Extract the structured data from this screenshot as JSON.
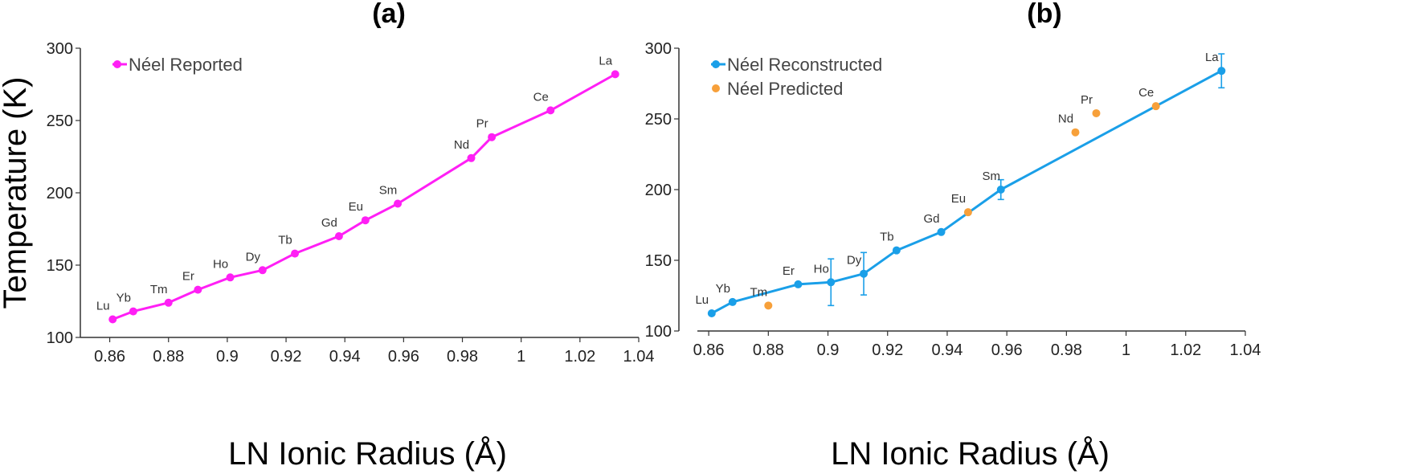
{
  "figure": {
    "panel_a_title": "(a)",
    "panel_b_title": "(b)",
    "shared_ylabel": "Temperature (K)"
  },
  "chart_data": [
    {
      "type": "line",
      "panel": "(a)",
      "title": "(a)",
      "xlabel": "LN Ionic Radius (Å)",
      "ylabel": "Temperature (K)",
      "xlim": [
        0.85,
        1.04
      ],
      "ylim": [
        100,
        300
      ],
      "xticks": [
        0.86,
        0.88,
        0.9,
        0.92,
        0.94,
        0.96,
        0.98,
        1,
        1.02,
        1.04
      ],
      "xtick_labels": [
        "0.86",
        "0.88",
        "0.9",
        "0.92",
        "0.94",
        "0.96",
        "0.98",
        "1",
        "1.02",
        "1.04"
      ],
      "yticks": [
        100,
        150,
        200,
        250,
        300
      ],
      "ytick_labels": [
        "100",
        "150",
        "200",
        "250",
        "300"
      ],
      "legend_position": "top-left",
      "series": [
        {
          "name": "Néel Reported",
          "color": "#ff1ff5",
          "style": "line+markers",
          "points": [
            {
              "label": "Lu",
              "x": 0.861,
              "y": 112.5
            },
            {
              "label": "Yb",
              "x": 0.868,
              "y": 118
            },
            {
              "label": "Tm",
              "x": 0.88,
              "y": 124
            },
            {
              "label": "Er",
              "x": 0.89,
              "y": 133
            },
            {
              "label": "Ho",
              "x": 0.901,
              "y": 141.5
            },
            {
              "label": "Dy",
              "x": 0.912,
              "y": 146.5
            },
            {
              "label": "Tb",
              "x": 0.923,
              "y": 158
            },
            {
              "label": "Gd",
              "x": 0.938,
              "y": 170
            },
            {
              "label": "Eu",
              "x": 0.947,
              "y": 181
            },
            {
              "label": "Sm",
              "x": 0.958,
              "y": 192.5
            },
            {
              "label": "Nd",
              "x": 0.983,
              "y": 224
            },
            {
              "label": "Pr",
              "x": 0.99,
              "y": 238.5
            },
            {
              "label": "Ce",
              "x": 1.01,
              "y": 257
            },
            {
              "label": "La",
              "x": 1.032,
              "y": 282
            }
          ]
        }
      ]
    },
    {
      "type": "line",
      "panel": "(b)",
      "title": "(b)",
      "xlabel": "LN Ionic Radius (Å)",
      "ylabel": "Temperature (K)",
      "xlim": [
        0.85,
        1.04
      ],
      "ylim": [
        100,
        300
      ],
      "xticks": [
        0.86,
        0.88,
        0.9,
        0.92,
        0.94,
        0.96,
        0.98,
        1,
        1.02,
        1.04
      ],
      "xtick_labels": [
        "0.86",
        "0.88",
        "0.9",
        "0.92",
        "0.94",
        "0.96",
        "0.98",
        "1",
        "1.02",
        "1.04"
      ],
      "yticks": [
        100,
        150,
        200,
        250,
        300
      ],
      "ytick_labels": [
        "100",
        "150",
        "200",
        "250",
        "300"
      ],
      "legend_position": "top-left",
      "series": [
        {
          "name": "Néel Reconstructed",
          "color": "#1a9fe8",
          "style": "line+markers+errorbars",
          "points": [
            {
              "label": "Lu",
              "x": 0.861,
              "y": 112.5,
              "err": 0
            },
            {
              "label": "Yb",
              "x": 0.868,
              "y": 120.5,
              "err": 0
            },
            {
              "label": "Er",
              "x": 0.89,
              "y": 133,
              "err": 0
            },
            {
              "label": "Ho",
              "x": 0.901,
              "y": 134.5,
              "err": 16.5
            },
            {
              "label": "Dy",
              "x": 0.912,
              "y": 140.5,
              "err": 15
            },
            {
              "label": "Tb",
              "x": 0.923,
              "y": 157,
              "err": 0
            },
            {
              "label": "Gd",
              "x": 0.938,
              "y": 170,
              "err": 0
            },
            {
              "label": "Sm",
              "x": 0.958,
              "y": 200,
              "err": 7
            },
            {
              "label": "La",
              "x": 1.032,
              "y": 284,
              "err": 12
            }
          ]
        },
        {
          "name": "Néel Predicted",
          "color": "#f7a03a",
          "style": "markers",
          "points": [
            {
              "label": "Tm",
              "x": 0.88,
              "y": 118
            },
            {
              "label": "Eu",
              "x": 0.947,
              "y": 184
            },
            {
              "label": "Nd",
              "x": 0.983,
              "y": 240.5
            },
            {
              "label": "Pr",
              "x": 0.99,
              "y": 254
            },
            {
              "label": "Ce",
              "x": 1.01,
              "y": 259
            }
          ]
        }
      ]
    }
  ]
}
